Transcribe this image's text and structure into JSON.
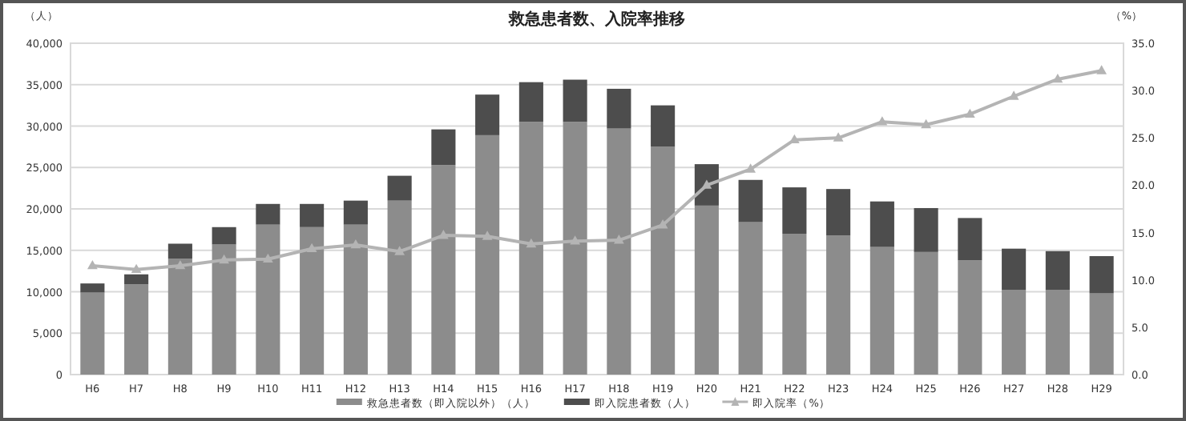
{
  "chart_data": {
    "type": "bar",
    "title": "救急患者数、入院率推移",
    "ylabel": "（人）",
    "y2label": "（%）",
    "categories": [
      "H6",
      "H7",
      "H8",
      "H9",
      "H10",
      "H11",
      "H12",
      "H13",
      "H14",
      "H15",
      "H16",
      "H17",
      "H18",
      "H19",
      "H20",
      "H21",
      "H22",
      "H23",
      "H24",
      "H25",
      "H26",
      "H27",
      "H28",
      "H29"
    ],
    "stacked": true,
    "series": [
      {
        "name": "救急患者数（即入院以外）（人）",
        "color": "#8c8c8c",
        "values": [
          9900,
          10900,
          14000,
          15700,
          18100,
          17800,
          18100,
          21000,
          25300,
          28900,
          30500,
          30500,
          29700,
          27500,
          20400,
          18400,
          17000,
          16800,
          15400,
          14800,
          13800,
          10200,
          10200,
          9800
        ]
      },
      {
        "name": "即入院患者数（人）",
        "color": "#4d4d4d",
        "values": [
          1100,
          1200,
          1800,
          2100,
          2500,
          2800,
          2900,
          3000,
          4300,
          4900,
          4800,
          5100,
          4800,
          5000,
          5000,
          5100,
          5600,
          5600,
          5500,
          5300,
          5100,
          5000,
          4700,
          4500
        ]
      },
      {
        "name": "即入院率（%）",
        "type": "line",
        "axis": "y2",
        "color": "#b4b4b4",
        "marker": "triangle",
        "values": [
          11.5,
          11.1,
          11.5,
          12.1,
          12.2,
          13.3,
          13.7,
          13.0,
          14.7,
          14.6,
          13.8,
          14.1,
          14.2,
          15.8,
          20.0,
          21.7,
          24.8,
          25.0,
          26.7,
          26.4,
          27.5,
          29.4,
          31.2,
          32.1
        ]
      }
    ],
    "ylim": [
      0,
      40000
    ],
    "yticks": [
      0,
      {
        "value": 5000,
        "label": "5,000"
      },
      {
        "value": 10000,
        "label": "10,000"
      },
      {
        "value": 15000,
        "label": "15,000"
      },
      {
        "value": 20000,
        "label": "20,000"
      },
      {
        "value": 25000,
        "label": "25,000"
      },
      {
        "value": 30000,
        "label": "30,000"
      },
      {
        "value": 35000,
        "label": "35,000"
      },
      {
        "value": 40000,
        "label": "40,000"
      }
    ],
    "y2lim": [
      0,
      35
    ],
    "y2ticks": [
      {
        "value": 0,
        "label": "0.0"
      },
      {
        "value": 5,
        "label": "5.0"
      },
      {
        "value": 10,
        "label": "10.0"
      },
      {
        "value": 15,
        "label": "15.0"
      },
      {
        "value": 20,
        "label": "20.0"
      },
      {
        "value": 25,
        "label": "25.0"
      },
      {
        "value": 30,
        "label": "30.0"
      },
      {
        "value": 35,
        "label": "35.0"
      }
    ],
    "grid": "y",
    "legend": "bottom"
  }
}
